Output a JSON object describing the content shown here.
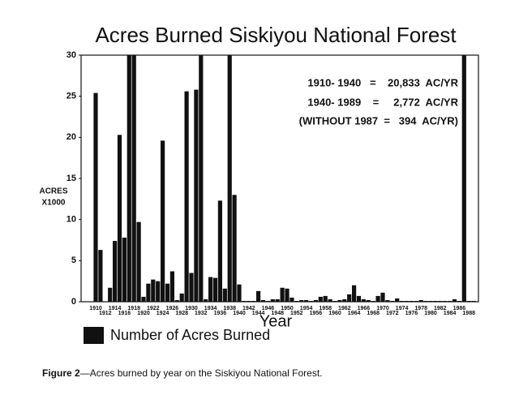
{
  "chart_data": {
    "type": "bar",
    "title": "Acres Burned Siskiyou National Forest",
    "y_label": [
      "ACRES",
      "X1000"
    ],
    "x_label": "Year",
    "annotations": [
      "1910- 1940   =    20,833  AC/YR",
      "1940- 1989    =     2,772  AC/YR",
      "(WITHOUT 1987  =   394  AC/YR)"
    ],
    "caption": {
      "label": "Figure 2",
      "text": "—Acres burned by year on the Siskiyou National Forest."
    },
    "categories": [
      "1910",
      null,
      "1912",
      null,
      "1914",
      null,
      "1916",
      null,
      "1918",
      null,
      "1920",
      null,
      "1922",
      null,
      "1924",
      null,
      "1926",
      null,
      "1928",
      null,
      "1930",
      null,
      "1932",
      null,
      "1934",
      null,
      "1936",
      null,
      "1938",
      null,
      "1940",
      null,
      "1942",
      null,
      "1944",
      null,
      "1946",
      null,
      "1948",
      null,
      "1950",
      null,
      "1952",
      null,
      "1954",
      null,
      "1956",
      null,
      "1958",
      null,
      "1960",
      null,
      "1962",
      null,
      "1964",
      null,
      "1966",
      null,
      "1968",
      null,
      "1970",
      null,
      "1972",
      null,
      "1974",
      null,
      "1976",
      null,
      "1978",
      null,
      "1980",
      null,
      "1982",
      null,
      "1984",
      null,
      "1986",
      null,
      "1988",
      null
    ],
    "series": [
      {
        "name": "Number of Acres Burned",
        "color": "#111111",
        "values": [
          25.4,
          6.3,
          0,
          1.7,
          7.4,
          20.3,
          7.8,
          30,
          30,
          9.7,
          0.6,
          2.2,
          2.7,
          2.5,
          19.6,
          2.2,
          3.7,
          0.2,
          1.0,
          25.6,
          3.5,
          25.8,
          30,
          0.3,
          3.0,
          2.9,
          12.3,
          1.6,
          30,
          13.0,
          2.1,
          0.1,
          0.1,
          0.1,
          1.3,
          0.2,
          0.1,
          0.3,
          0.3,
          1.7,
          1.6,
          0.5,
          0.1,
          0.2,
          0.2,
          0.1,
          0.2,
          0.6,
          0.7,
          0.3,
          0.1,
          0.2,
          0.3,
          0.9,
          2.0,
          0.7,
          0.3,
          0.2,
          0.1,
          0.7,
          1.1,
          0.2,
          0.1,
          0.4,
          0.1,
          0.1,
          0.1,
          0.1,
          0.2,
          0.1,
          0.1,
          0.1,
          0.1,
          0.1,
          0.1,
          0.3,
          0.1,
          30,
          0.1,
          0.1
        ]
      }
    ],
    "ylim": [
      0,
      30
    ],
    "yticks": [
      0,
      5,
      10,
      15,
      20,
      25,
      30
    ],
    "grid": false
  }
}
